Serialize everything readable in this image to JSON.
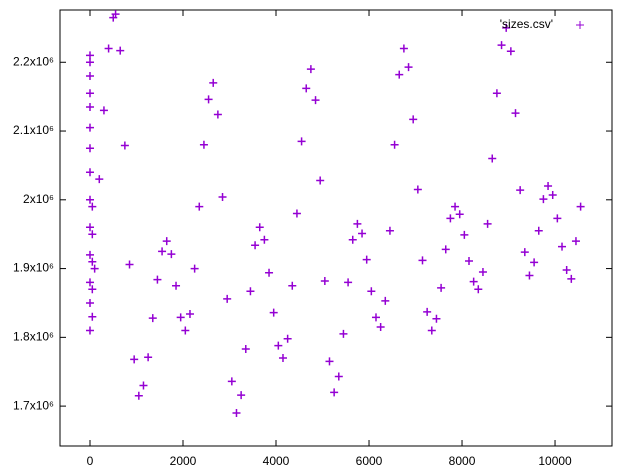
{
  "chart_data": {
    "type": "scatter",
    "legend_position": "top-right",
    "series": [
      {
        "name": "'sizes.csv'",
        "color": "#9400d3",
        "x": [
          0,
          0,
          0,
          0,
          0,
          0,
          0,
          0,
          0,
          0,
          0,
          0,
          0,
          0,
          50,
          50,
          50,
          50,
          50,
          100,
          200,
          300,
          400,
          500,
          550,
          650,
          750,
          850,
          950,
          1050,
          1150,
          1250,
          1350,
          1450,
          1550,
          1650,
          1750,
          1850,
          1950,
          2050,
          2150,
          2250,
          2350,
          2450,
          2550,
          2650,
          2750,
          2850,
          2950,
          3050,
          3150,
          3250,
          3350,
          3450,
          3550,
          3650,
          3750,
          3850,
          3950,
          4050,
          4150,
          4250,
          4350,
          4450,
          4550,
          4650,
          4750,
          4850,
          4950,
          5050,
          5150,
          5250,
          5350,
          5450,
          5550,
          5650,
          5750,
          5850,
          5950,
          6050,
          6150,
          6250,
          6350,
          6450,
          6550,
          6650,
          6750,
          6850,
          6950,
          7050,
          7150,
          7250,
          7350,
          7450,
          7550,
          7650,
          7750,
          7850,
          7950,
          8050,
          8150,
          8250,
          8350,
          8450,
          8550,
          8650,
          8750,
          8850,
          8950,
          9050,
          9150,
          9250,
          9350,
          9450,
          9550,
          9650,
          9750,
          9850,
          9950,
          10050,
          10150,
          10250,
          10350,
          10450,
          10550
        ],
        "values": [
          2210000,
          2200000,
          2180000,
          2155000,
          2135000,
          2105000,
          2075000,
          2040000,
          2000000,
          1960000,
          1920000,
          1880000,
          1850000,
          1810000,
          1830000,
          1870000,
          1910000,
          1950000,
          1990000,
          1900000,
          2030000,
          2130000,
          2220000,
          2265000,
          2270000,
          2217000,
          2079000,
          1906000,
          1768000,
          1715000,
          1730000,
          1771000,
          1828000,
          1884000,
          1925000,
          1940000,
          1921000,
          1875000,
          1829000,
          1810000,
          1834000,
          1900000,
          1990000,
          2080000,
          2146000,
          2170000,
          2124000,
          2004000,
          1856000,
          1736000,
          1690000,
          1716000,
          1783000,
          1867000,
          1934000,
          1960000,
          1942000,
          1894000,
          1836000,
          1788000,
          1770000,
          1798000,
          1875000,
          1980000,
          2085000,
          2162000,
          2190000,
          2145000,
          2028000,
          1882000,
          1765000,
          1720000,
          1743000,
          1805000,
          1880000,
          1942000,
          1965000,
          1951000,
          1913000,
          1867000,
          1829000,
          1815000,
          1853000,
          1955000,
          2080000,
          2182000,
          2220000,
          2193000,
          2117000,
          2015000,
          1912000,
          1837000,
          1810000,
          1827000,
          1872000,
          1928000,
          1973000,
          1990000,
          1979000,
          1949000,
          1911000,
          1881000,
          1870000,
          1895000,
          1965000,
          2060000,
          2155000,
          2225000,
          2250000,
          2216000,
          2126000,
          2014000,
          1924000,
          1890000,
          1909000,
          1955000,
          2001000,
          2020000,
          2007000,
          1973000,
          1932000,
          1898000,
          1885000,
          1940000,
          1990000
        ]
      }
    ],
    "xlim": [
      -645,
      11225
    ],
    "xticks": [
      0,
      2000,
      4000,
      6000,
      8000,
      10000
    ],
    "ylim": [
      1642000,
      2276000
    ],
    "yticks": [
      {
        "value": 1700000,
        "label": "1.7x10⁶"
      },
      {
        "value": 1800000,
        "label": "1.8x10⁶"
      },
      {
        "value": 1900000,
        "label": "1.9x10⁶"
      },
      {
        "value": 2000000,
        "label": "2x10⁶"
      },
      {
        "value": 2100000,
        "label": "2.1x10⁶"
      },
      {
        "value": 2200000,
        "label": "2.2x10⁶"
      }
    ]
  }
}
